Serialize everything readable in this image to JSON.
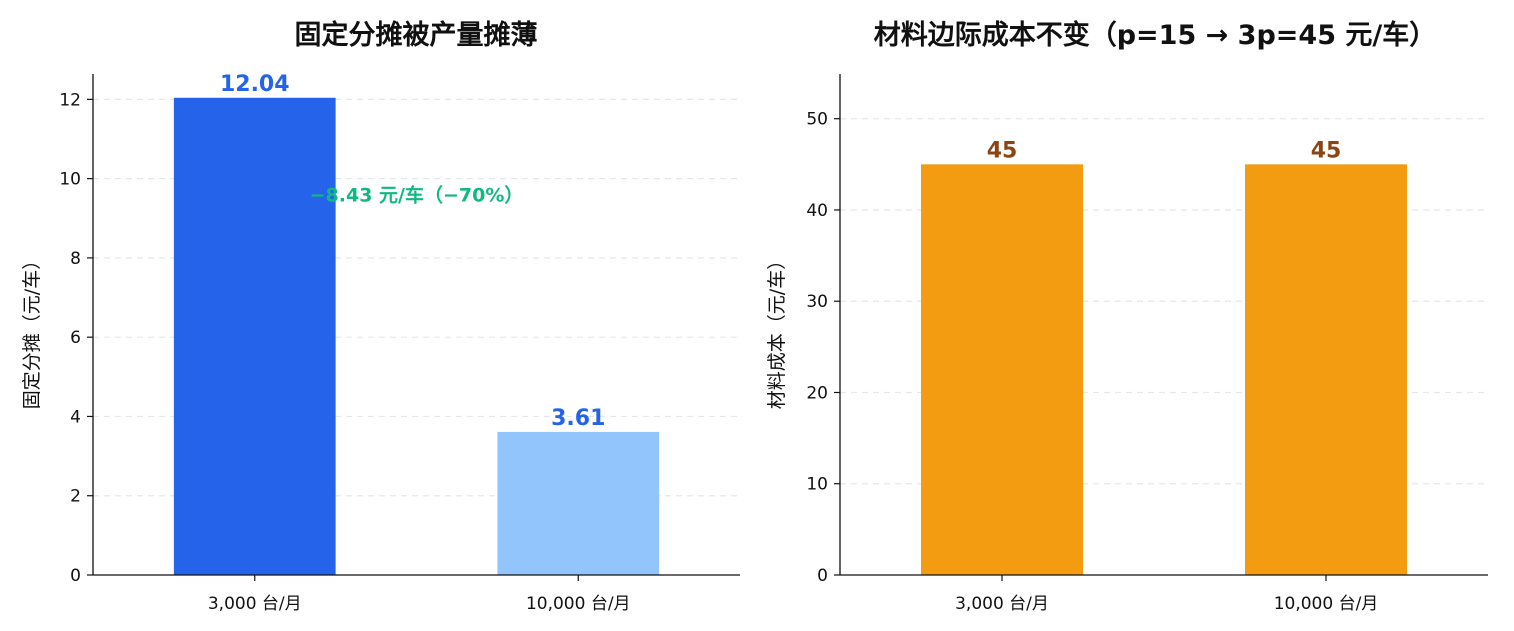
{
  "chart_data": [
    {
      "type": "bar",
      "title": "固定分摊被产量摊薄",
      "xlabel": "",
      "ylabel": "固定分摊（元/车）",
      "categories": [
        "3,000 台/月",
        "10,000 台/月"
      ],
      "values": [
        12.04,
        3.61
      ],
      "data_labels": [
        "12.04",
        "3.61"
      ],
      "bar_colors": [
        "#2563eb",
        "#93c5fd"
      ],
      "label_color": "#2563eb",
      "ylim": [
        0,
        12.64
      ],
      "yticks": [
        0,
        2,
        4,
        6,
        8,
        10,
        12
      ],
      "grid": "y-dashed",
      "annotation": {
        "text": "−8.43 元/车（−70%）",
        "color": "#10b981",
        "x": 0.5,
        "y": 9.6
      }
    },
    {
      "type": "bar",
      "title": "材料边际成本不变（p=15 → 3p=45 元/车）",
      "xlabel": "",
      "ylabel": "材料成本（元/车）",
      "categories": [
        "3,000 台/月",
        "10,000 台/月"
      ],
      "values": [
        45,
        45
      ],
      "data_labels": [
        "45",
        "45"
      ],
      "bar_colors": [
        "#f39c12",
        "#f39c12"
      ],
      "label_color": "#8b4513",
      "ylim": [
        0,
        54.9
      ],
      "yticks": [
        0,
        10,
        20,
        30,
        40,
        50
      ],
      "grid": "y-dashed"
    }
  ]
}
